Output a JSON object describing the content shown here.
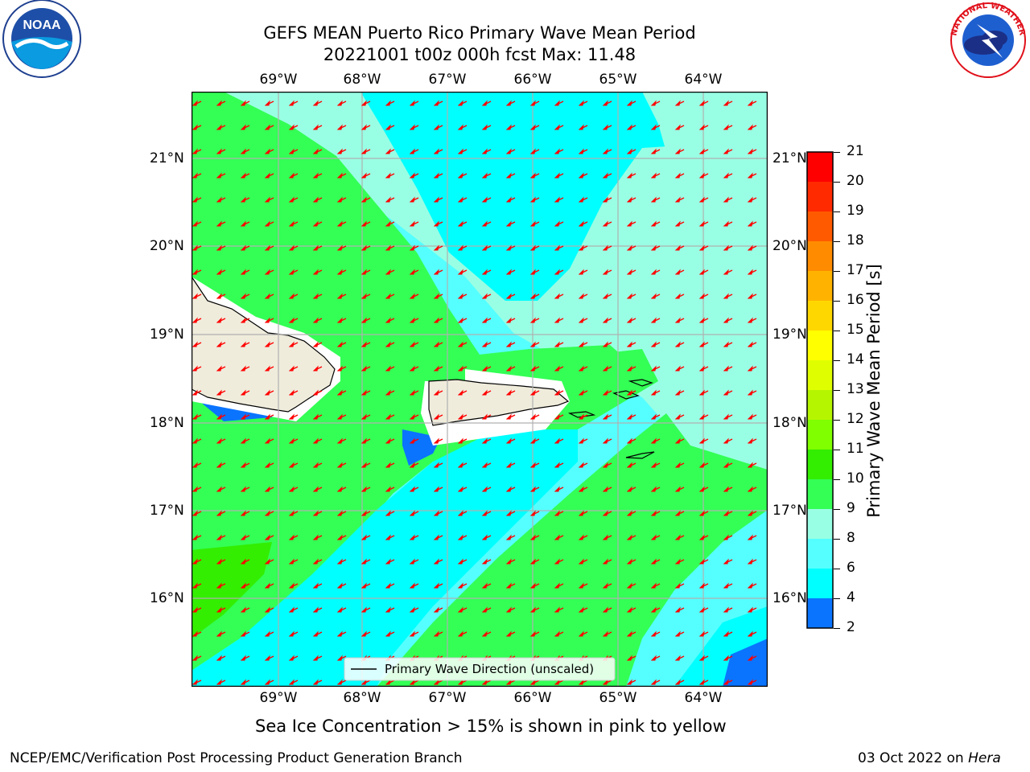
{
  "header": {
    "title_line1": "GEFS MEAN Puerto Rico Primary Wave Mean Period",
    "title_line2": "20221001 t00z 000h fcst   Max: 11.48"
  },
  "map": {
    "lon_labels": [
      "69°W",
      "68°W",
      "67°W",
      "66°W",
      "65°W",
      "64°W"
    ],
    "lat_labels": [
      "21°N",
      "20°N",
      "19°N",
      "18°N",
      "17°N",
      "16°N"
    ],
    "legend_text": "Primary Wave Direction (unscaled)",
    "colors": {
      "land": "#efecdc",
      "arrow": "#ff0000",
      "grid": "#b0b0b0",
      "band_6_8": "#00ffff",
      "band_8_9": "#55ffff",
      "band_9_10": "#99ffe4",
      "band_10_11": "#33ff55",
      "band_11_12": "#33ee00",
      "band_4_6": "#0a74ff"
    }
  },
  "colorbar": {
    "label": "Primary Wave Mean Period [s]",
    "ticks": [
      "21",
      "20",
      "19",
      "18",
      "17",
      "16",
      "15",
      "14",
      "13",
      "12",
      "11",
      "10",
      "9",
      "8",
      "6",
      "4",
      "2"
    ],
    "colors": [
      "#ff0000",
      "#ff2a00",
      "#ff5a00",
      "#ff8c00",
      "#ffb300",
      "#ffd700",
      "#ffff00",
      "#dfff00",
      "#b5f500",
      "#80ff00",
      "#33ee00",
      "#33ff55",
      "#99ffe4",
      "#55ffff",
      "#00ffff",
      "#0a74ff",
      "#0000ff"
    ]
  },
  "notes": {
    "sea_ice": "Sea Ice Concentration > 15% is shown in pink to yellow",
    "branch": "NCEP/EMC/Verification Post Processing Product Generation Branch",
    "date": "03 Oct 2022 on",
    "machine": "Hera"
  },
  "logos": {
    "noaa_text": "NOAA",
    "noaa_ring": "NATIONAL OCEANIC AND ATMOSPHERIC ADMINISTRATION · U.S. DEPARTMENT OF COMMERCE",
    "nws_ring": "NATIONAL WEATHER SERVICE"
  }
}
